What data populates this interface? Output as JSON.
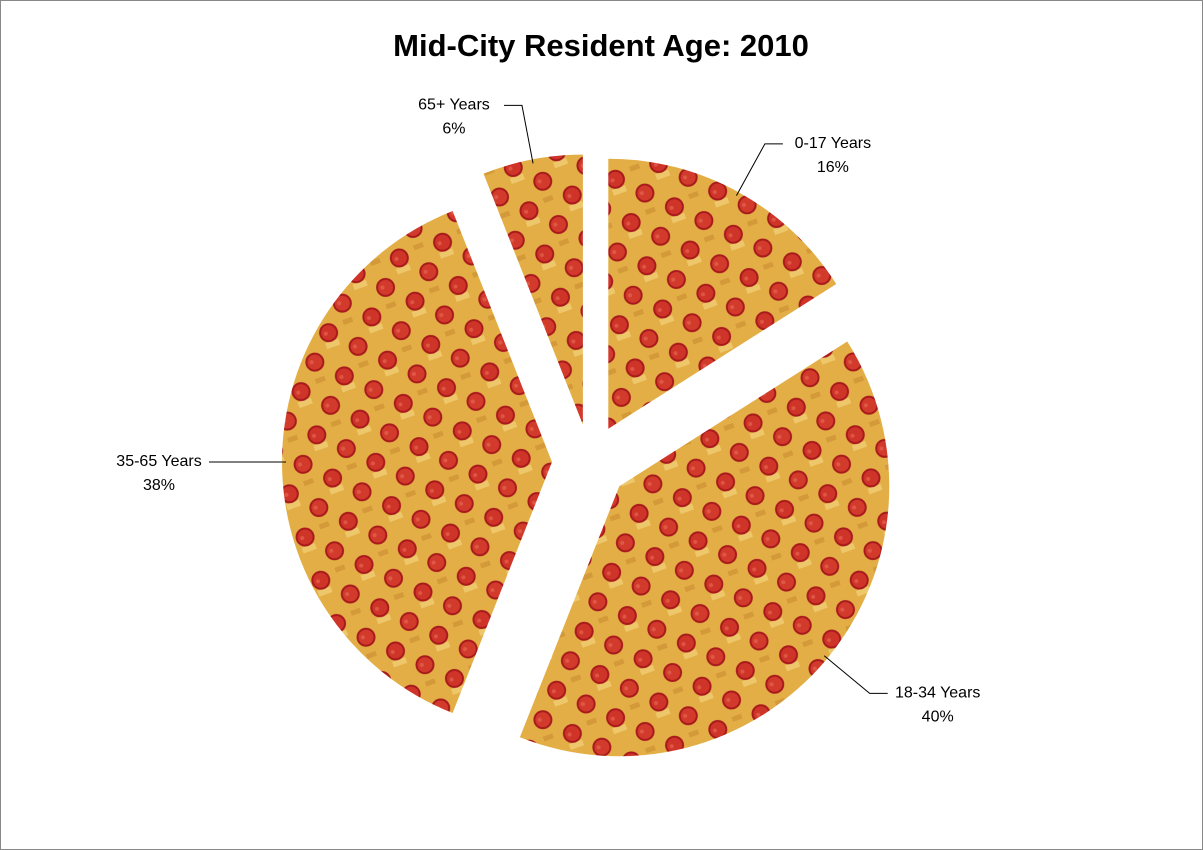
{
  "chart_data": {
    "type": "pie",
    "title": "Mid-City Resident Age: 2010",
    "categories": [
      "0-17 Years",
      "18-34 Years",
      "35-65 Years",
      "65+ Years"
    ],
    "values": [
      16,
      40,
      38,
      6
    ],
    "value_labels": [
      "16%",
      "40%",
      "38%",
      "6%"
    ]
  }
}
